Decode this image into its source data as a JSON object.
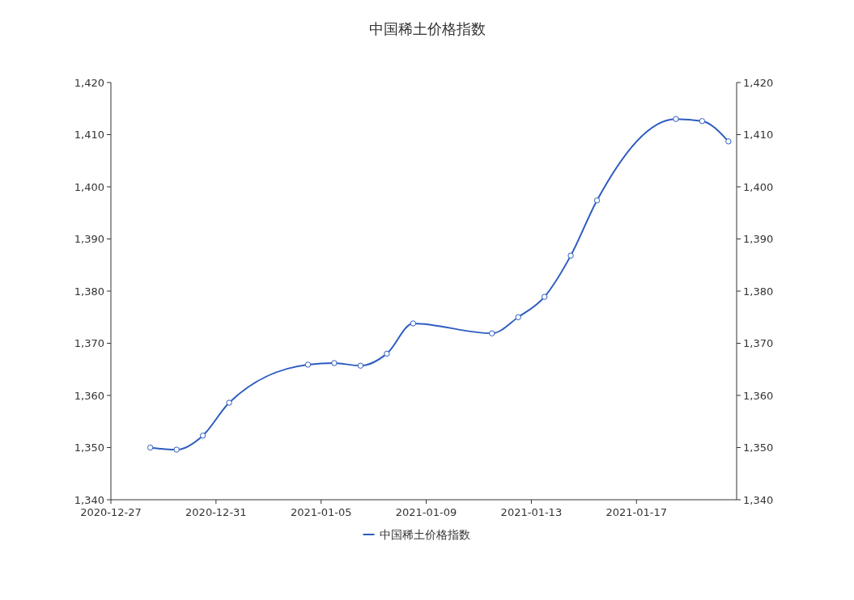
{
  "chart_data": {
    "type": "line",
    "title": "中国稀土价格指数",
    "x": [
      "2020-12-29",
      "2020-12-30",
      "2020-12-31",
      "2021-01-01",
      "2021-01-04",
      "2021-01-05",
      "2021-01-06",
      "2021-01-07",
      "2021-01-08",
      "2021-01-11",
      "2021-01-12",
      "2021-01-13",
      "2021-01-14",
      "2021-01-15",
      "2021-01-18",
      "2021-01-19",
      "2021-01-20"
    ],
    "series": [
      {
        "name": "中国稀土价格指数",
        "color": "#2d5cc0",
        "values": [
          1350.0,
          1349.6,
          1352.3,
          1358.6,
          1365.9,
          1366.2,
          1365.7,
          1368.0,
          1373.8,
          1371.9,
          1375.0,
          1378.9,
          1386.8,
          1397.4,
          1413.0,
          1412.6,
          1408.7
        ]
      }
    ],
    "xlim": [
      "2020-12-27T12:00",
      "2021-01-20T07:30"
    ],
    "xticks": [
      {
        "value": "2020-12-27T12:00",
        "label": "2020-12-27"
      },
      {
        "value": "2020-12-31T12:00",
        "label": "2020-12-31"
      },
      {
        "value": "2021-01-04T12:00",
        "label": "2021-01-05"
      },
      {
        "value": "2021-01-08T12:00",
        "label": "2021-01-09"
      },
      {
        "value": "2021-01-12T12:00",
        "label": "2021-01-13"
      },
      {
        "value": "2021-01-16T12:00",
        "label": "2021-01-17"
      }
    ],
    "ylim": [
      1340,
      1420
    ],
    "yticks": [
      {
        "value": 1340,
        "label": "1,340"
      },
      {
        "value": 1350,
        "label": "1,350"
      },
      {
        "value": 1360,
        "label": "1,360"
      },
      {
        "value": 1370,
        "label": "1,370"
      },
      {
        "value": 1380,
        "label": "1,380"
      },
      {
        "value": 1390,
        "label": "1,390"
      },
      {
        "value": 1400,
        "label": "1,400"
      },
      {
        "value": 1410,
        "label": "1,410"
      },
      {
        "value": 1420,
        "label": "1,420"
      }
    ],
    "y2lim": [
      1340,
      1420
    ],
    "y2ticks": [
      {
        "value": 1340,
        "label": "1,340"
      },
      {
        "value": 1350,
        "label": "1,350"
      },
      {
        "value": 1360,
        "label": "1,360"
      },
      {
        "value": 1370,
        "label": "1,370"
      },
      {
        "value": 1380,
        "label": "1,380"
      },
      {
        "value": 1390,
        "label": "1,390"
      },
      {
        "value": 1400,
        "label": "1,400"
      },
      {
        "value": 1410,
        "label": "1,410"
      },
      {
        "value": 1420,
        "label": "1,420"
      }
    ],
    "marker": "circle",
    "line_style": "solid",
    "legend": "bottom",
    "grid": false
  }
}
